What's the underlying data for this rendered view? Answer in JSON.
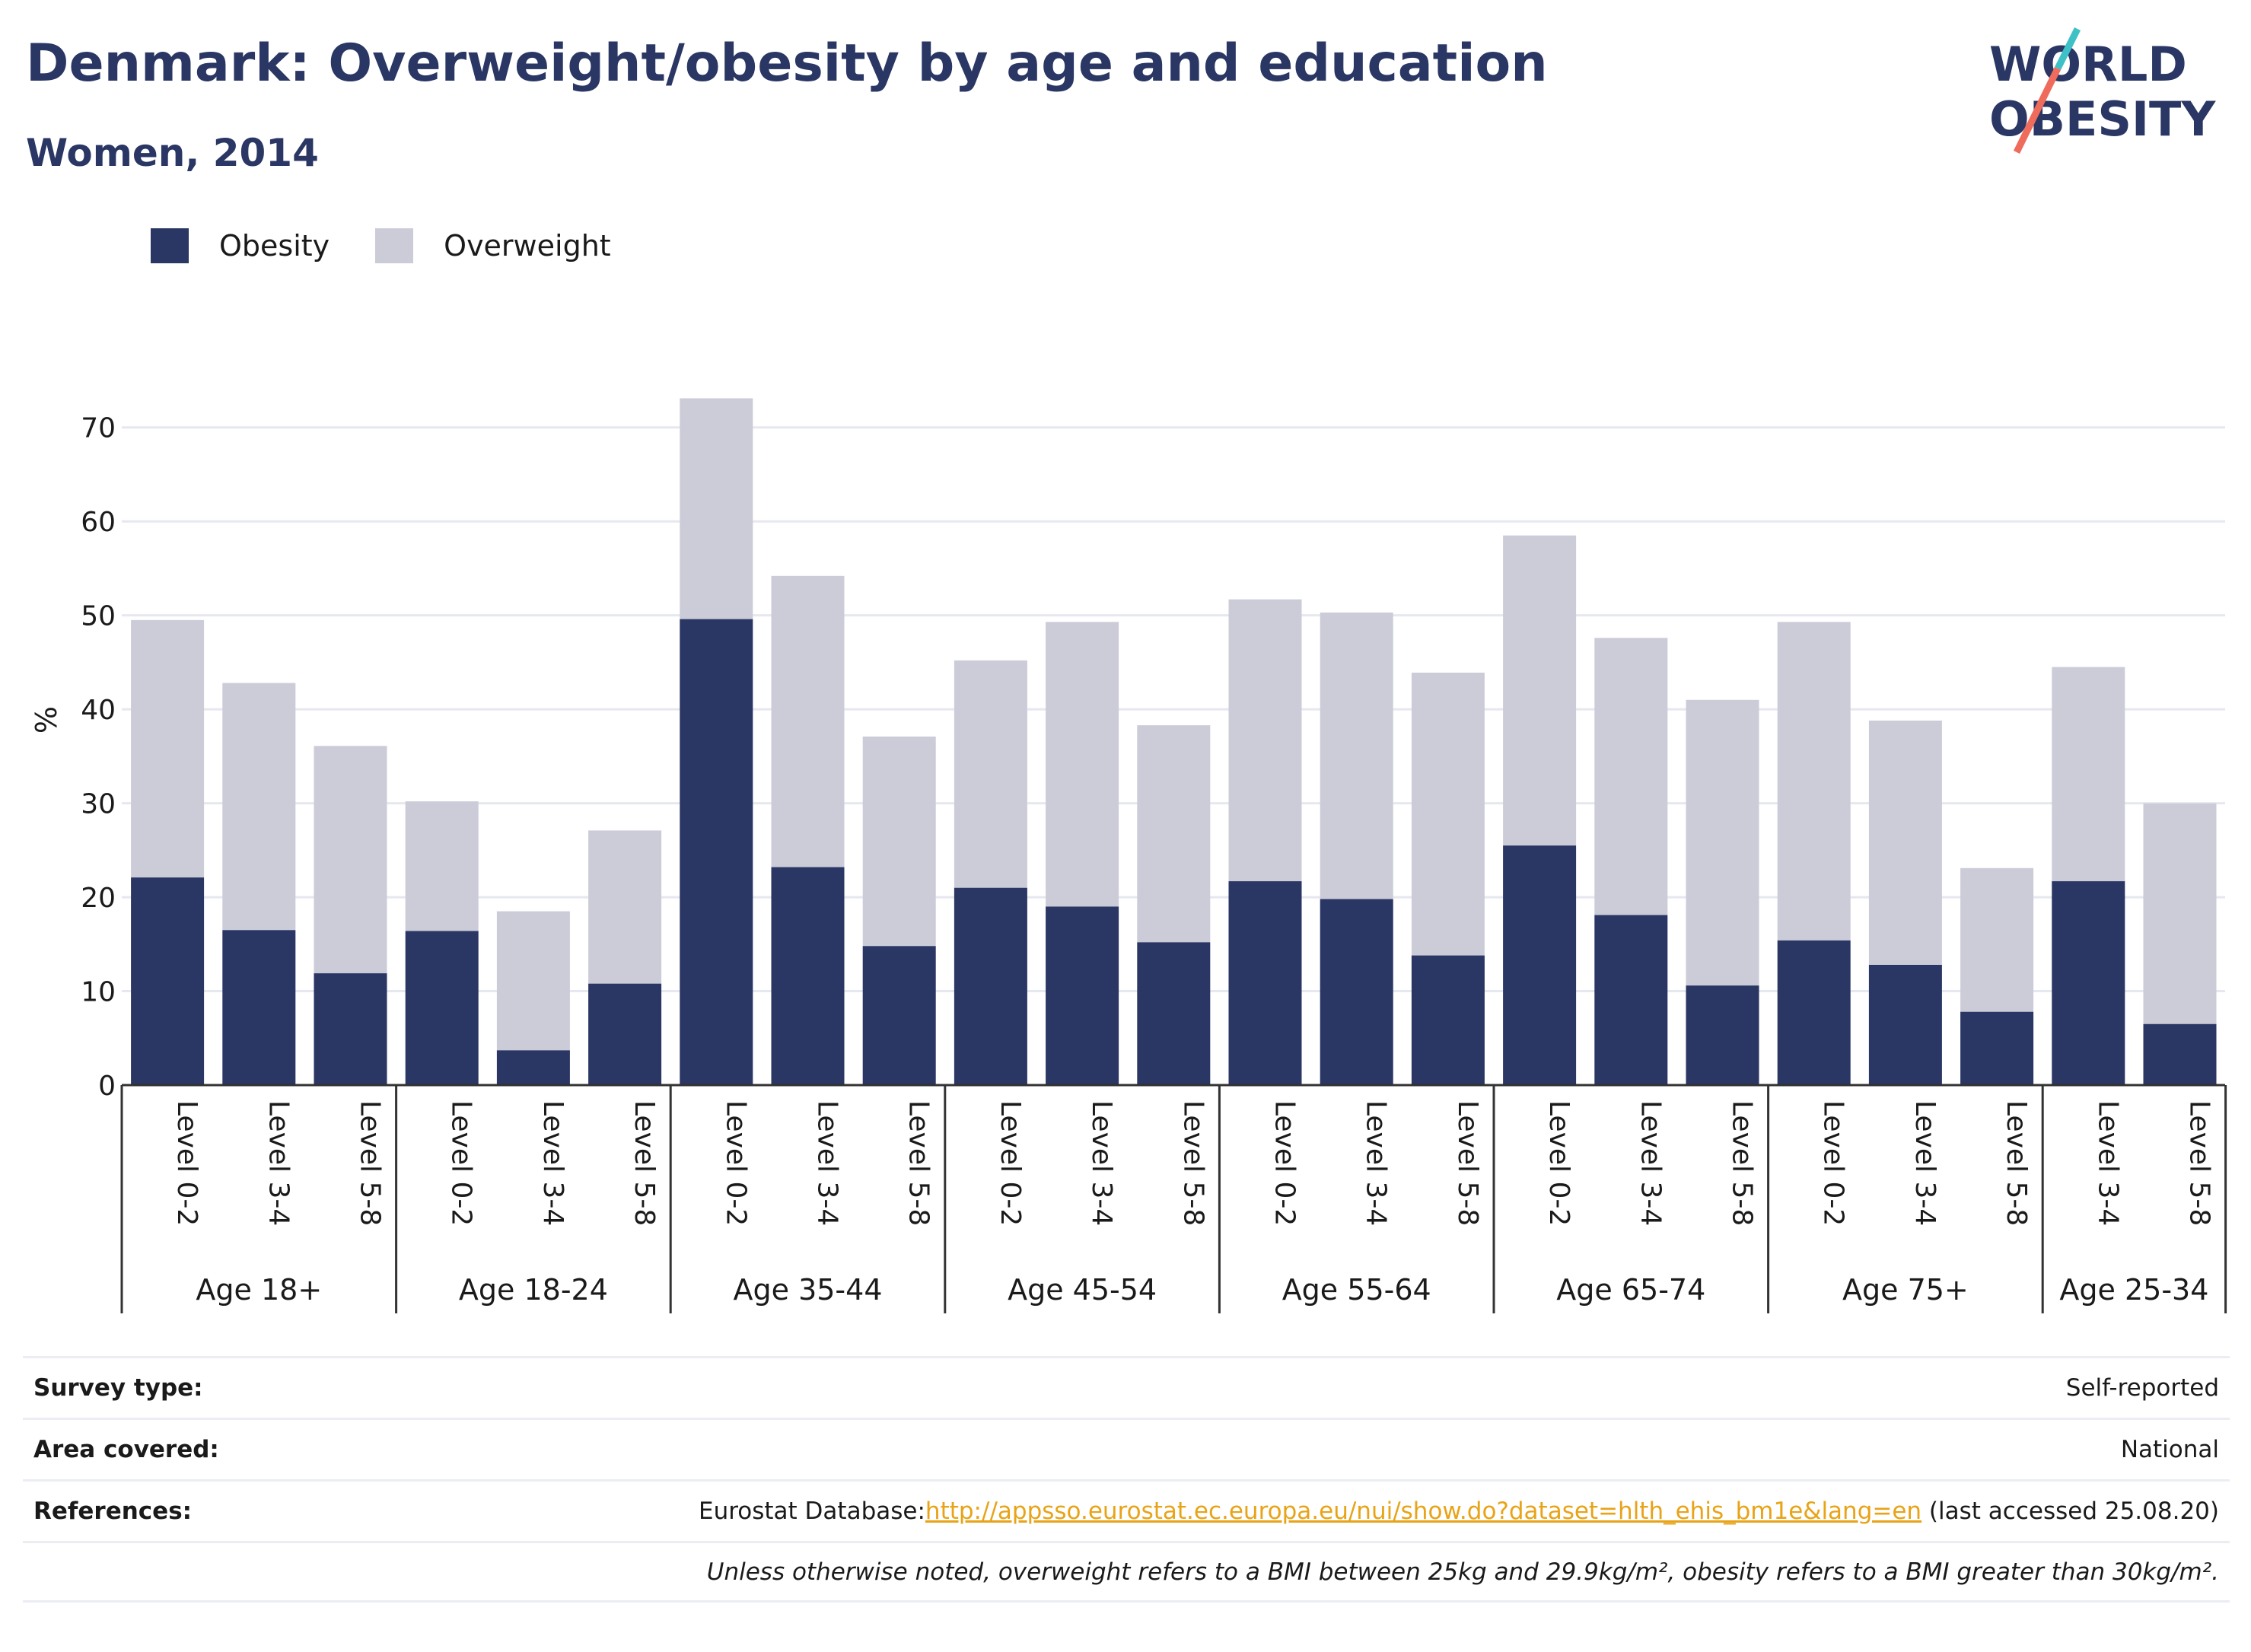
{
  "title": "Denmark: Overweight/obesity by age and education",
  "subtitle": "Women, 2014",
  "logo": {
    "line1": "WORLD",
    "line2": "OBESITY"
  },
  "legend": {
    "obesity": "Obesity",
    "overweight": "Overweight"
  },
  "colors": {
    "obesity": "#2a3663",
    "overweight": "#cbccd8",
    "grid": "#e6e8ef",
    "axis": "#333333"
  },
  "chart_data": {
    "type": "bar",
    "stacked": true,
    "ylabel": "%",
    "ylim": [
      0,
      75
    ],
    "yticks": [
      0,
      10,
      20,
      30,
      40,
      50,
      60,
      70
    ],
    "grid": true,
    "legend_position": "top-left",
    "groups": [
      {
        "label": "Age 18+",
        "categories": [
          "Level 0-2",
          "Level 3-4",
          "Level 5-8"
        ]
      },
      {
        "label": "Age 18-24",
        "categories": [
          "Level 0-2",
          "Level 3-4",
          "Level 5-8"
        ]
      },
      {
        "label": "Age 35-44",
        "categories": [
          "Level 0-2",
          "Level 3-4",
          "Level 5-8"
        ]
      },
      {
        "label": "Age 45-54",
        "categories": [
          "Level 0-2",
          "Level 3-4",
          "Level 5-8"
        ]
      },
      {
        "label": "Age 55-64",
        "categories": [
          "Level 0-2",
          "Level 3-4",
          "Level 5-8"
        ]
      },
      {
        "label": "Age 65-74",
        "categories": [
          "Level 0-2",
          "Level 3-4",
          "Level 5-8"
        ]
      },
      {
        "label": "Age 75+",
        "categories": [
          "Level 0-2",
          "Level 3-4",
          "Level 5-8"
        ]
      },
      {
        "label": "Age 25-34",
        "categories": [
          "Level 3-4",
          "Level 5-8"
        ]
      }
    ],
    "series": [
      {
        "name": "Obesity",
        "values": [
          22.1,
          16.5,
          11.9,
          16.4,
          3.7,
          10.8,
          49.6,
          23.2,
          14.8,
          21.0,
          19.0,
          15.2,
          21.7,
          19.8,
          13.8,
          25.5,
          18.1,
          10.6,
          15.4,
          12.8,
          7.8,
          21.7,
          6.5
        ]
      },
      {
        "name": "Overweight",
        "values": [
          27.4,
          26.3,
          24.2,
          13.8,
          14.8,
          16.3,
          23.5,
          31.0,
          22.3,
          24.2,
          30.3,
          23.1,
          30.0,
          30.5,
          30.1,
          33.0,
          29.5,
          30.4,
          33.9,
          26.0,
          15.3,
          22.8,
          23.5
        ]
      }
    ]
  },
  "meta": {
    "survey_type_label": "Survey type:",
    "survey_type_value": "Self-reported",
    "area_label": "Area covered:",
    "area_value": "National",
    "references_label": "References:",
    "references_prefix": "Eurostat Database:",
    "references_link": "http://appsso.eurostat.ec.europa.eu/nui/show.do?dataset=hlth_ehis_bm1e&lang=en",
    "references_suffix": " (last accessed 25.08.20)",
    "note": "Unless otherwise noted, overweight refers to a BMI between 25kg and 29.9kg/m², obesity refers to a BMI greater than 30kg/m²."
  }
}
